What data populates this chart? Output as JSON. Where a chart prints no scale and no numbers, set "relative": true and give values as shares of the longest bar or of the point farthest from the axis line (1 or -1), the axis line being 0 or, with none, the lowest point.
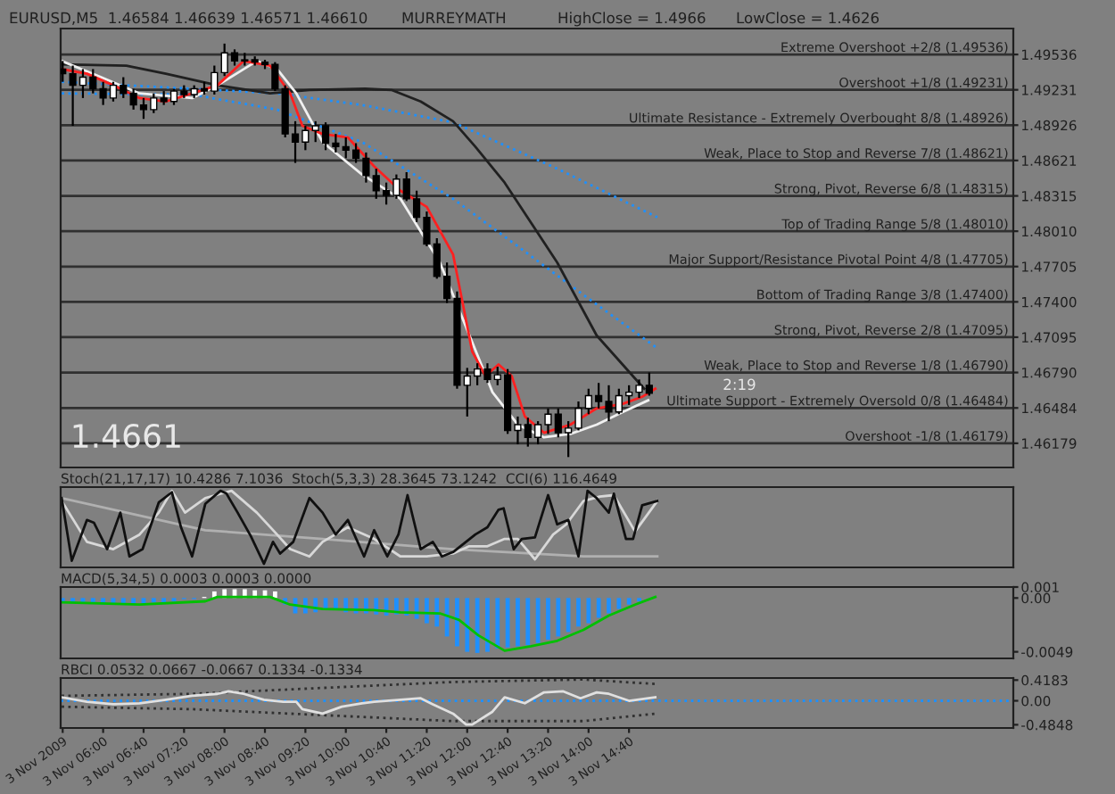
{
  "chart_data": [
    {
      "type": "candlestick",
      "x": [
        "2009-11-03T05:20",
        "2009-11-03T05:30",
        "2009-11-03T05:40",
        "2009-11-03T05:50",
        "2009-11-03T06:00",
        "2009-11-03T06:10",
        "2009-11-03T06:20",
        "2009-11-03T06:30",
        "2009-11-03T06:40",
        "2009-11-03T06:50",
        "2009-11-03T07:00",
        "2009-11-03T07:10",
        "2009-11-03T07:20",
        "2009-11-03T07:30",
        "2009-11-03T07:40",
        "2009-11-03T07:50",
        "2009-11-03T08:00",
        "2009-11-03T08:10",
        "2009-11-03T08:20",
        "2009-11-03T08:30",
        "2009-11-03T08:40",
        "2009-11-03T08:50",
        "2009-11-03T09:00",
        "2009-11-03T09:10",
        "2009-11-03T09:20",
        "2009-11-03T09:30",
        "2009-11-03T09:40",
        "2009-11-03T09:50",
        "2009-11-03T10:00",
        "2009-11-03T10:10",
        "2009-11-03T10:20",
        "2009-11-03T10:30",
        "2009-11-03T10:40",
        "2009-11-03T10:50",
        "2009-11-03T11:00",
        "2009-11-03T11:10",
        "2009-11-03T11:20",
        "2009-11-03T11:30",
        "2009-11-03T11:40",
        "2009-11-03T11:50",
        "2009-11-03T12:00",
        "2009-11-03T12:10",
        "2009-11-03T12:20",
        "2009-11-03T12:30",
        "2009-11-03T12:40",
        "2009-11-03T12:50",
        "2009-11-03T13:00",
        "2009-11-03T13:10",
        "2009-11-03T13:20",
        "2009-11-03T13:30",
        "2009-11-03T13:40",
        "2009-11-03T13:50",
        "2009-11-03T14:00",
        "2009-11-03T14:10",
        "2009-11-03T14:20",
        "2009-11-03T14:30",
        "2009-11-03T14:40",
        "2009-11-03T14:50",
        "2009-11-03T15:00"
      ],
      "ohlc": [
        [
          1.4941,
          1.4948,
          1.493,
          1.4937
        ],
        [
          1.4937,
          1.4944,
          1.4892,
          1.4927
        ],
        [
          1.4927,
          1.4941,
          1.4916,
          1.4934
        ],
        [
          1.4934,
          1.4941,
          1.492,
          1.4924
        ],
        [
          1.4924,
          1.493,
          1.491,
          1.4916
        ],
        [
          1.4916,
          1.493,
          1.4913,
          1.4927
        ],
        [
          1.4927,
          1.4934,
          1.4916,
          1.492
        ],
        [
          1.492,
          1.4924,
          1.4906,
          1.491
        ],
        [
          1.491,
          1.4916,
          1.4898,
          1.4906
        ],
        [
          1.4906,
          1.492,
          1.4903,
          1.4916
        ],
        [
          1.4916,
          1.4922,
          1.491,
          1.4913
        ],
        [
          1.4913,
          1.4924,
          1.491,
          1.4922
        ],
        [
          1.4922,
          1.4927,
          1.4916,
          1.4919
        ],
        [
          1.4919,
          1.4927,
          1.4916,
          1.4924
        ],
        [
          1.4924,
          1.493,
          1.4919,
          1.4922
        ],
        [
          1.4922,
          1.4944,
          1.4919,
          1.4938
        ],
        [
          1.4938,
          1.4963,
          1.4935,
          1.4955
        ],
        [
          1.4955,
          1.4958,
          1.4944,
          1.4948
        ],
        [
          1.4948,
          1.4955,
          1.4944,
          1.4949
        ],
        [
          1.4949,
          1.4952,
          1.4944,
          1.4947
        ],
        [
          1.4947,
          1.4949,
          1.4941,
          1.4945
        ],
        [
          1.4945,
          1.4947,
          1.4922,
          1.4924
        ],
        [
          1.4924,
          1.4927,
          1.4882,
          1.4885
        ],
        [
          1.4885,
          1.4896,
          1.486,
          1.4878
        ],
        [
          1.4878,
          1.4892,
          1.4871,
          1.4888
        ],
        [
          1.4888,
          1.4896,
          1.4878,
          1.4892
        ],
        [
          1.4892,
          1.4895,
          1.4871,
          1.4877
        ],
        [
          1.4877,
          1.4885,
          1.4869,
          1.4874
        ],
        [
          1.4874,
          1.4882,
          1.4864,
          1.4871
        ],
        [
          1.4871,
          1.4877,
          1.486,
          1.4864
        ],
        [
          1.4864,
          1.4869,
          1.4843,
          1.4849
        ],
        [
          1.4849,
          1.4855,
          1.4829,
          1.4836
        ],
        [
          1.4836,
          1.4843,
          1.4824,
          1.4832
        ],
        [
          1.4832,
          1.485,
          1.4829,
          1.4846
        ],
        [
          1.4846,
          1.4852,
          1.4827,
          1.4829
        ],
        [
          1.4829,
          1.4836,
          1.4809,
          1.4813
        ],
        [
          1.4813,
          1.4818,
          1.4788,
          1.479
        ],
        [
          1.479,
          1.4795,
          1.476,
          1.4762
        ],
        [
          1.4762,
          1.4774,
          1.4739,
          1.4743
        ],
        [
          1.4743,
          1.4749,
          1.4665,
          1.4668
        ],
        [
          1.4668,
          1.4683,
          1.4641,
          1.4676
        ],
        [
          1.4676,
          1.4687,
          1.4668,
          1.4682
        ],
        [
          1.4682,
          1.4687,
          1.467,
          1.4673
        ],
        [
          1.4673,
          1.4684,
          1.4668,
          1.4677
        ],
        [
          1.4677,
          1.4682,
          1.4626,
          1.4629
        ],
        [
          1.4629,
          1.4641,
          1.4617,
          1.4634
        ],
        [
          1.4634,
          1.464,
          1.4615,
          1.4623
        ],
        [
          1.4623,
          1.4637,
          1.4617,
          1.4634
        ],
        [
          1.4634,
          1.4648,
          1.4626,
          1.4643
        ],
        [
          1.4643,
          1.4648,
          1.4623,
          1.4627
        ],
        [
          1.4627,
          1.4637,
          1.4606,
          1.4631
        ],
        [
          1.4631,
          1.4654,
          1.4629,
          1.4648
        ],
        [
          1.4648,
          1.4665,
          1.4643,
          1.4659
        ],
        [
          1.4659,
          1.467,
          1.4648,
          1.4654
        ],
        [
          1.4654,
          1.4668,
          1.4637,
          1.4645
        ],
        [
          1.4645,
          1.4665,
          1.4643,
          1.4659
        ],
        [
          1.4659,
          1.4668,
          1.4651,
          1.4662
        ],
        [
          1.4662,
          1.4673,
          1.4657,
          1.4668
        ],
        [
          1.4668,
          1.4679,
          1.4659,
          1.4661
        ]
      ],
      "series": [
        {
          "type": "line",
          "color": "#1e90ff",
          "line_style": "dotted",
          "x": [
            "2009-11-03T05:19",
            "2009-11-03T07:28",
            "2009-11-03T08:52",
            "2009-11-03T10:16",
            "2009-11-03T11:46",
            "2009-11-03T13:29",
            "2009-11-03T15:08"
          ],
          "values": [
            1.493,
            1.4924,
            1.492,
            1.491,
            1.4895,
            1.4855,
            1.4813
          ]
        },
        {
          "type": "line",
          "color": "#1e90ff",
          "line_style": "dotted",
          "x": [
            "2009-11-03T05:19",
            "2009-11-03T07:28",
            "2009-11-03T08:52",
            "2009-11-03T10:16",
            "2009-11-03T11:46",
            "2009-11-03T12:50",
            "2009-11-03T13:55",
            "2009-11-03T15:08"
          ],
          "values": [
            1.492,
            1.4919,
            1.4906,
            1.4878,
            1.4829,
            1.4788,
            1.4746,
            1.47
          ]
        },
        {
          "type": "line",
          "color": "#202020",
          "x": [
            "2009-11-03T05:19",
            "2009-11-03T06:23",
            "2009-11-03T07:02",
            "2009-11-03T07:53",
            "2009-11-03T08:45",
            "2009-11-03T09:24",
            "2009-11-03T10:19",
            "2009-11-03T10:45",
            "2009-11-03T11:14",
            "2009-11-03T11:46",
            "2009-11-03T12:08",
            "2009-11-03T12:37",
            "2009-11-03T13:29",
            "2009-11-03T14:08",
            "2009-11-03T14:55"
          ],
          "values": [
            1.4945,
            1.4944,
            1.4937,
            1.4927,
            1.492,
            1.4923,
            1.4924,
            1.4923,
            1.4913,
            1.4896,
            1.4874,
            1.4843,
            1.4774,
            1.4711,
            1.4665
          ]
        },
        {
          "type": "line",
          "color": "#f0f0f0",
          "x": [
            "2009-11-03T05:19",
            "2009-11-03T05:58",
            "2009-11-03T06:36",
            "2009-11-03T07:28",
            "2009-11-03T07:53",
            "2009-11-03T08:32",
            "2009-11-03T08:52",
            "2009-11-03T09:11",
            "2009-11-03T09:37",
            "2009-11-03T10:16",
            "2009-11-03T10:54",
            "2009-11-03T11:33",
            "2009-11-03T11:59",
            "2009-11-03T12:25",
            "2009-11-03T12:50",
            "2009-11-03T13:16",
            "2009-11-03T13:42",
            "2009-11-03T14:08",
            "2009-11-03T14:34",
            "2009-11-03T14:59"
          ],
          "values": [
            1.4948,
            1.4934,
            1.492,
            1.4916,
            1.4927,
            1.4948,
            1.4941,
            1.492,
            1.4878,
            1.485,
            1.4829,
            1.4774,
            1.4718,
            1.4662,
            1.4634,
            1.4623,
            1.4626,
            1.4634,
            1.4645,
            1.4655
          ]
        },
        {
          "type": "line",
          "color": "#ff2020",
          "x": [
            "2009-11-03T05:19",
            "2009-11-03T05:44",
            "2009-11-03T06:10",
            "2009-11-03T06:36",
            "2009-11-03T07:02",
            "2009-11-03T07:28",
            "2009-11-03T07:53",
            "2009-11-03T08:19",
            "2009-11-03T08:45",
            "2009-11-03T09:05",
            "2009-11-03T09:17",
            "2009-11-03T09:37",
            "2009-11-03T10:02",
            "2009-11-03T10:28",
            "2009-11-03T10:54",
            "2009-11-03T11:20",
            "2009-11-03T11:46",
            "2009-11-03T12:05",
            "2009-11-03T12:18",
            "2009-11-03T12:31",
            "2009-11-03T12:44",
            "2009-11-03T12:57",
            "2009-11-03T13:16",
            "2009-11-03T13:42",
            "2009-11-03T14:08",
            "2009-11-03T14:34",
            "2009-11-03T14:53",
            "2009-11-03T15:06"
          ],
          "values": [
            1.4941,
            1.4937,
            1.4927,
            1.4916,
            1.4913,
            1.492,
            1.4927,
            1.4948,
            1.4944,
            1.492,
            1.4892,
            1.4885,
            1.4882,
            1.4857,
            1.4836,
            1.4822,
            1.4781,
            1.4697,
            1.4676,
            1.4686,
            1.4676,
            1.4641,
            1.4627,
            1.4634,
            1.4648,
            1.4652,
            1.4658,
            1.4665
          ]
        }
      ],
      "ref_lines": [
        {
          "axis": "y",
          "value": 1.49536,
          "label": "Extreme Overshoot +2/8 (1.49536)",
          "color": "#303030"
        },
        {
          "axis": "y",
          "value": 1.49231,
          "label": "Overshoot +1/8 (1.49231)",
          "color": "#303030"
        },
        {
          "axis": "y",
          "value": 1.48926,
          "label": "Ultimate Resistance - Extremely Overbought 8/8 (1.48926)",
          "color": "#303030"
        },
        {
          "axis": "y",
          "value": 1.48621,
          "label": "Weak, Place to Stop and Reverse 7/8 (1.48621)",
          "color": "#303030"
        },
        {
          "axis": "y",
          "value": 1.48315,
          "label": "Strong, Pivot, Reverse 6/8 (1.48315)",
          "color": "#303030"
        },
        {
          "axis": "y",
          "value": 1.4801,
          "label": "Top of Trading Range 5/8 (1.48010)",
          "color": "#303030"
        },
        {
          "axis": "y",
          "value": 1.47705,
          "label": "Major Support/Resistance Pivotal Point 4/8 (1.47705)",
          "color": "#303030"
        },
        {
          "axis": "y",
          "value": 1.474,
          "label": "Bottom of Trading Range 3/8 (1.47400)",
          "color": "#303030"
        },
        {
          "axis": "y",
          "value": 1.47095,
          "label": "Strong, Pivot, Reverse 2/8 (1.47095)",
          "color": "#303030"
        },
        {
          "axis": "y",
          "value": 1.4679,
          "label": "Weak, Place to Stop and Reverse 1/8 (1.46790)",
          "color": "#303030"
        },
        {
          "axis": "y",
          "value": 1.46484,
          "label": "Ultimate Support - Extremely Oversold 0/8 (1.46484)",
          "color": "#303030"
        },
        {
          "axis": "y",
          "value": 1.46179,
          "label": "Overshoot -1/8 (1.46179)",
          "color": "#303030"
        }
      ],
      "xlim": [
        "2009-11-03T05:18",
        "2009-11-03T21:00"
      ],
      "ylim": [
        1.4597,
        1.4976
      ],
      "yticks": [
        {
          "value": 1.49536,
          "label": "1.49536"
        },
        {
          "value": 1.49231,
          "label": "1.49231"
        },
        {
          "value": 1.48926,
          "label": "1.48926"
        },
        {
          "value": 1.48621,
          "label": "1.48621"
        },
        {
          "value": 1.48315,
          "label": "1.48315"
        },
        {
          "value": 1.4801,
          "label": "1.48010"
        },
        {
          "value": 1.47705,
          "label": "1.47705"
        },
        {
          "value": 1.474,
          "label": "1.47400"
        },
        {
          "value": 1.47095,
          "label": "1.47095"
        },
        {
          "value": 1.4679,
          "label": "1.46790"
        },
        {
          "value": 1.46484,
          "label": "1.46484"
        },
        {
          "value": 1.46179,
          "label": "1.46179"
        }
      ],
      "tick_labels": "y",
      "annotations": [
        "EURUSD,M5  1.46584 1.46639 1.46571 1.46610",
        "MURREYMATH",
        "HighClose = 1.4966",
        "LowClose = 1.4626",
        "1.4661",
        "2:19"
      ]
    },
    {
      "type": "line",
      "relative": true,
      "title": "Stoch(21,17,17) 10.4286 7.1036  Stoch(5,3,3) 28.3645 73.1242  CCI(6) 116.4649",
      "xlim": [
        "2009-11-03T05:18",
        "2009-11-03T21:00"
      ],
      "tick_labels": false,
      "series": [
        {
          "color": "#b0b0b0",
          "x": [
            "2009-11-03T05:19",
            "2009-11-03T07:41",
            "2009-11-03T09:37",
            "2009-11-03T11:46",
            "2009-11-03T13:55",
            "2009-11-03T15:08"
          ],
          "values": [
            0.9,
            0.46,
            0.34,
            0.2,
            0.1,
            0.1
          ]
        },
        {
          "color": "#d8d8d8",
          "x": [
            "2009-11-03T05:19",
            "2009-11-03T05:44",
            "2009-11-03T06:10",
            "2009-11-03T06:36",
            "2009-11-03T06:55",
            "2009-11-03T07:08",
            "2009-11-03T07:21",
            "2009-11-03T07:41",
            "2009-11-03T08:07",
            "2009-11-03T08:32",
            "2009-11-03T08:52",
            "2009-11-03T09:05",
            "2009-11-03T09:24",
            "2009-11-03T09:37",
            "2009-11-03T10:02",
            "2009-11-03T10:28",
            "2009-11-03T10:54",
            "2009-11-03T11:20",
            "2009-11-03T11:46",
            "2009-11-03T12:02",
            "2009-11-03T12:20",
            "2009-11-03T12:37",
            "2009-11-03T12:50",
            "2009-11-03T13:07",
            "2009-11-03T13:25",
            "2009-11-03T13:38",
            "2009-11-03T13:55",
            "2009-11-03T14:11",
            "2009-11-03T14:25",
            "2009-11-03T14:46",
            "2009-11-03T15:08"
          ],
          "values": [
            0.86,
            0.3,
            0.2,
            0.4,
            0.7,
            1,
            0.7,
            0.9,
            1,
            0.7,
            0.4,
            0.2,
            0.1,
            0.3,
            0.5,
            0.34,
            0.1,
            0.1,
            0.14,
            0.24,
            0.24,
            0.34,
            0.34,
            0.06,
            0.4,
            0.54,
            0.86,
            0.92,
            0.94,
            0.44,
            0.86
          ]
        },
        {
          "color": "#101010",
          "x": [
            "2009-11-03T05:19",
            "2009-11-03T05:29",
            "2009-11-03T05:44",
            "2009-11-03T05:51",
            "2009-11-03T06:04",
            "2009-11-03T06:17",
            "2009-11-03T06:26",
            "2009-11-03T06:39",
            "2009-11-03T06:55",
            "2009-11-03T07:08",
            "2009-11-03T07:17",
            "2009-11-03T07:28",
            "2009-11-03T07:41",
            "2009-11-03T07:56",
            "2009-11-03T08:02",
            "2009-11-03T08:13",
            "2009-11-03T08:26",
            "2009-11-03T08:39",
            "2009-11-03T08:48",
            "2009-11-03T08:55",
            "2009-11-03T09:08",
            "2009-11-03T09:24",
            "2009-11-03T09:37",
            "2009-11-03T09:50",
            "2009-11-03T10:02",
            "2009-11-03T10:18",
            "2009-11-03T10:28",
            "2009-11-03T10:41",
            "2009-11-03T10:52",
            "2009-11-03T11:01",
            "2009-11-03T11:14",
            "2009-11-03T11:26",
            "2009-11-03T11:35",
            "2009-11-03T11:46",
            "2009-11-03T12:08",
            "2009-11-03T12:20",
            "2009-11-03T12:31",
            "2009-11-03T12:36",
            "2009-11-03T12:46",
            "2009-11-03T12:54",
            "2009-11-03T13:07",
            "2009-11-03T13:20",
            "2009-11-03T13:29",
            "2009-11-03T13:40",
            "2009-11-03T13:50",
            "2009-11-03T13:59",
            "2009-11-03T14:08",
            "2009-11-03T14:20",
            "2009-11-03T14:25",
            "2009-11-03T14:37",
            "2009-11-03T14:44",
            "2009-11-03T14:53",
            "2009-11-03T15:08"
          ],
          "values": [
            0.9,
            0.04,
            0.6,
            0.56,
            0.2,
            0.7,
            0.1,
            0.2,
            0.84,
            0.98,
            0.5,
            0.1,
            0.82,
            1,
            0.96,
            0.7,
            0.38,
            0,
            0.3,
            0.14,
            0.3,
            0.9,
            0.7,
            0.4,
            0.6,
            0.1,
            0.46,
            0.1,
            0.4,
            0.94,
            0.2,
            0.3,
            0.1,
            0.16,
            0.4,
            0.5,
            0.74,
            0.76,
            0.2,
            0.34,
            0.36,
            0.94,
            0.54,
            0.6,
            0.1,
            1,
            0.9,
            0.7,
            0.96,
            0.34,
            0.34,
            0.8,
            0.86
          ]
        }
      ]
    },
    {
      "type": "bar",
      "title": "MACD(5,34,5) 0.0003 0.0003 0.0000",
      "xlim": [
        "2009-11-03T05:18",
        "2009-11-03T21:00"
      ],
      "ylim": [
        -0.0055,
        0.001
      ],
      "tick_labels": "y",
      "yticks": [
        {
          "value": 0.001,
          "label": "0.001"
        },
        {
          "value": 0,
          "label": "0.00"
        },
        {
          "value": -0.0049,
          "label": "-0.0049"
        }
      ],
      "series": [
        {
          "type": "bar",
          "x": [
            "2009-11-03T05:20",
            "2009-11-03T05:30",
            "2009-11-03T05:40",
            "2009-11-03T05:50",
            "2009-11-03T06:00",
            "2009-11-03T06:10",
            "2009-11-03T06:20",
            "2009-11-03T06:30",
            "2009-11-03T06:40",
            "2009-11-03T06:50",
            "2009-11-03T07:00",
            "2009-11-03T07:10",
            "2009-11-03T07:20",
            "2009-11-03T07:30",
            "2009-11-03T07:40",
            "2009-11-03T07:50",
            "2009-11-03T08:00",
            "2009-11-03T08:10",
            "2009-11-03T08:20",
            "2009-11-03T08:30",
            "2009-11-03T08:40",
            "2009-11-03T08:50",
            "2009-11-03T09:00",
            "2009-11-03T09:10",
            "2009-11-03T09:20",
            "2009-11-03T09:30",
            "2009-11-03T09:40",
            "2009-11-03T09:50",
            "2009-11-03T10:00",
            "2009-11-03T10:10",
            "2009-11-03T10:20",
            "2009-11-03T10:30",
            "2009-11-03T10:40",
            "2009-11-03T10:50",
            "2009-11-03T11:00",
            "2009-11-03T11:10",
            "2009-11-03T11:20",
            "2009-11-03T11:30",
            "2009-11-03T11:40",
            "2009-11-03T11:50",
            "2009-11-03T12:00",
            "2009-11-03T12:10",
            "2009-11-03T12:20",
            "2009-11-03T12:30",
            "2009-11-03T12:40",
            "2009-11-03T12:50",
            "2009-11-03T13:00",
            "2009-11-03T13:10",
            "2009-11-03T13:20",
            "2009-11-03T13:30",
            "2009-11-03T13:40",
            "2009-11-03T13:50",
            "2009-11-03T14:00",
            "2009-11-03T14:10",
            "2009-11-03T14:20",
            "2009-11-03T14:30",
            "2009-11-03T14:40",
            "2009-11-03T14:50",
            "2009-11-03T15:00"
          ],
          "values": [
            -0.0003,
            -0.0004,
            -0.0005,
            -0.0005,
            -0.0006,
            -0.0006,
            -0.0005,
            -0.0005,
            -0.0005,
            -0.0004,
            -0.0004,
            -0.0003,
            -0.0001,
            -0.0001,
            0.0001,
            0.0006,
            0.0008,
            0.0008,
            0.0008,
            0.0007,
            0.0007,
            0.0006,
            -0.0006,
            -0.0014,
            -0.0014,
            -0.0013,
            -0.0011,
            -0.0011,
            -0.0013,
            -0.0014,
            -0.0014,
            -0.0015,
            -0.0016,
            -0.0015,
            -0.0016,
            -0.0019,
            -0.0023,
            -0.0026,
            -0.0035,
            -0.0044,
            -0.0049,
            -0.005,
            -0.0049,
            -0.0046,
            -0.0045,
            -0.0044,
            -0.0043,
            -0.0041,
            -0.0038,
            -0.0035,
            -0.0031,
            -0.0026,
            -0.0023,
            -0.0018,
            -0.0014,
            -0.001,
            -0.0006,
            -0.0003,
            0
          ],
          "colors": [
            "#1e90ff",
            "#1e90ff",
            "#1e90ff",
            "#1e90ff",
            "#1e90ff",
            "#1e90ff",
            "#1e90ff",
            "#1e90ff",
            "#1e90ff",
            "#1e90ff",
            "#1e90ff",
            "#1e90ff",
            "#1e90ff",
            "#1e90ff",
            "#ffffff",
            "#ffffff",
            "#ffffff",
            "#ffffff",
            "#ffffff",
            "#ffffff",
            "#ffffff",
            "#ffffff",
            "#1e90ff",
            "#1e90ff",
            "#1e90ff",
            "#1e90ff",
            "#1e90ff",
            "#1e90ff",
            "#1e90ff",
            "#1e90ff",
            "#1e90ff",
            "#1e90ff",
            "#1e90ff",
            "#1e90ff",
            "#1e90ff",
            "#1e90ff",
            "#1e90ff",
            "#1e90ff",
            "#1e90ff",
            "#1e90ff",
            "#1e90ff",
            "#1e90ff",
            "#1e90ff",
            "#1e90ff",
            "#1e90ff",
            "#1e90ff",
            "#1e90ff",
            "#1e90ff",
            "#1e90ff",
            "#1e90ff",
            "#1e90ff",
            "#1e90ff",
            "#1e90ff",
            "#1e90ff",
            "#1e90ff",
            "#1e90ff",
            "#1e90ff",
            "#1e90ff",
            "#1e90ff"
          ]
        },
        {
          "type": "line",
          "color": "#00c000",
          "x": [
            "2009-11-03T05:19",
            "2009-11-03T06:36",
            "2009-11-03T07:41",
            "2009-11-03T07:53",
            "2009-11-03T08:45",
            "2009-11-03T09:05",
            "2009-11-03T09:37",
            "2009-11-03T10:28",
            "2009-11-03T10:54",
            "2009-11-03T11:33",
            "2009-11-03T11:52",
            "2009-11-03T12:11",
            "2009-11-03T12:37",
            "2009-11-03T13:03",
            "2009-11-03T13:29",
            "2009-11-03T13:55",
            "2009-11-03T14:20",
            "2009-11-03T14:46",
            "2009-11-03T15:06"
          ],
          "values": [
            -0.0004,
            -0.0006,
            -0.0003,
            0.0001,
            0.0001,
            -0.0006,
            -0.001,
            -0.0011,
            -0.0013,
            -0.0014,
            -0.002,
            -0.0034,
            -0.0048,
            -0.0044,
            -0.0039,
            -0.0029,
            -0.0016,
            -0.0006,
            0.0001
          ]
        }
      ]
    },
    {
      "type": "line",
      "title": "RBCI 0.0532 0.0667 -0.0667 0.1334 -0.1334",
      "xlim": [
        "2009-11-03T05:18",
        "2009-11-03T21:00"
      ],
      "ylim": [
        -0.55,
        0.46
      ],
      "yticks": [
        {
          "value": 0.4183,
          "label": "0.4183"
        },
        {
          "value": 0,
          "label": "0.00"
        },
        {
          "value": -0.4848,
          "label": "-0.4848"
        }
      ],
      "xticks": [
        {
          "value": "2009-11-03T05:20",
          "label": "3 Nov 2009"
        },
        {
          "value": "2009-11-03T06:00",
          "label": "3 Nov 06:00"
        },
        {
          "value": "2009-11-03T06:40",
          "label": "3 Nov 06:40"
        },
        {
          "value": "2009-11-03T07:20",
          "label": "3 Nov 07:20"
        },
        {
          "value": "2009-11-03T08:00",
          "label": "3 Nov 08:00"
        },
        {
          "value": "2009-11-03T08:40",
          "label": "3 Nov 08:40"
        },
        {
          "value": "2009-11-03T09:20",
          "label": "3 Nov 09:20"
        },
        {
          "value": "2009-11-03T10:00",
          "label": "3 Nov 10:00"
        },
        {
          "value": "2009-11-03T10:40",
          "label": "3 Nov 10:40"
        },
        {
          "value": "2009-11-03T11:20",
          "label": "3 Nov 11:20"
        },
        {
          "value": "2009-11-03T12:00",
          "label": "3 Nov 12:00"
        },
        {
          "value": "2009-11-03T12:40",
          "label": "3 Nov 12:40"
        },
        {
          "value": "2009-11-03T13:20",
          "label": "3 Nov 13:20"
        },
        {
          "value": "2009-11-03T14:00",
          "label": "3 Nov 14:00"
        },
        {
          "value": "2009-11-03T14:40",
          "label": "3 Nov 14:40"
        }
      ],
      "ref_lines": [
        {
          "axis": "y",
          "value": 0,
          "color": "#1e90ff",
          "line_style": "dotted"
        }
      ],
      "series": [
        {
          "color": "#303030",
          "line_style": "dotted",
          "x": [
            "2009-11-03T05:19",
            "2009-11-03T07:28",
            "2009-11-03T09:37",
            "2009-11-03T11:46",
            "2009-11-03T13:55",
            "2009-11-03T15:06"
          ],
          "values": [
            0.1,
            0.14,
            0.26,
            0.38,
            0.43,
            0.34
          ]
        },
        {
          "color": "#303030",
          "line_style": "dotted",
          "x": [
            "2009-11-03T05:19",
            "2009-11-03T07:28",
            "2009-11-03T09:37",
            "2009-11-03T11:46",
            "2009-11-03T13:55",
            "2009-11-03T15:06"
          ],
          "values": [
            -0.12,
            -0.17,
            -0.29,
            -0.41,
            -0.41,
            -0.26
          ]
        },
        {
          "color": "#e0e0e0",
          "x": [
            "2009-11-03T05:19",
            "2009-11-03T05:44",
            "2009-11-03T06:10",
            "2009-11-03T06:36",
            "2009-11-03T07:02",
            "2009-11-03T07:28",
            "2009-11-03T07:53",
            "2009-11-03T08:04",
            "2009-11-03T08:19",
            "2009-11-03T08:39",
            "2009-11-03T08:58",
            "2009-11-03T09:11",
            "2009-11-03T09:17",
            "2009-11-03T09:37",
            "2009-11-03T09:56",
            "2009-11-03T10:16",
            "2009-11-03T10:28",
            "2009-11-03T10:54",
            "2009-11-03T11:14",
            "2009-11-03T11:26",
            "2009-11-03T11:46",
            "2009-11-03T11:59",
            "2009-11-03T12:05",
            "2009-11-03T12:25",
            "2009-11-03T12:37",
            "2009-11-03T12:57",
            "2009-11-03T13:16",
            "2009-11-03T13:35",
            "2009-11-03T13:52",
            "2009-11-03T14:08",
            "2009-11-03T14:20",
            "2009-11-03T14:40",
            "2009-11-03T15:06"
          ],
          "values": [
            0.07,
            -0.02,
            -0.07,
            -0.05,
            0.02,
            0.1,
            0.14,
            0.19,
            0.14,
            0.02,
            -0.02,
            -0.02,
            -0.17,
            -0.26,
            -0.12,
            -0.05,
            -0.02,
            0.02,
            0.05,
            -0.07,
            -0.26,
            -0.48,
            -0.48,
            -0.22,
            0.07,
            -0.05,
            0.17,
            0.19,
            0.05,
            0.17,
            0.14,
            0,
            0.07
          ]
        }
      ]
    }
  ]
}
